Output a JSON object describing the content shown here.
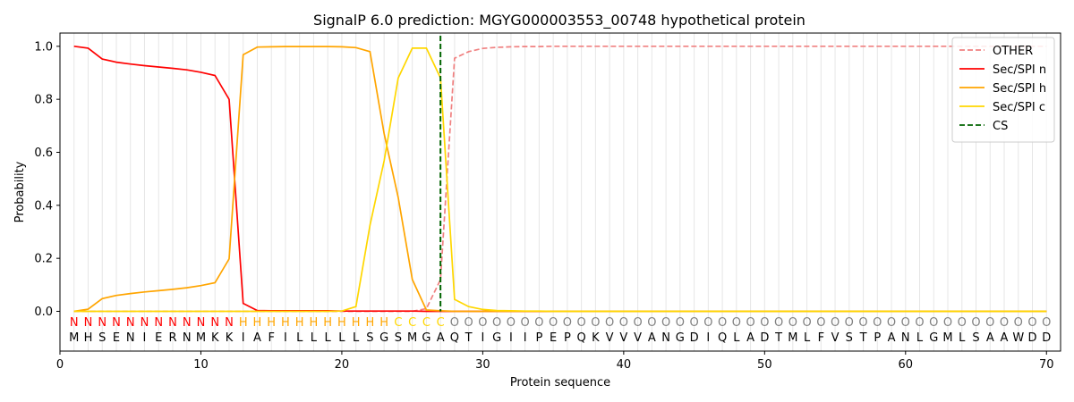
{
  "chart_data": {
    "type": "line",
    "title": "SignalP 6.0 prediction: MGYG000003553_00748 hypothetical protein",
    "xlabel": "Protein sequence",
    "ylabel": "Probability",
    "xlim": [
      0,
      71
    ],
    "ylim": [
      -0.15,
      1.05
    ],
    "x_ticks": [
      0,
      10,
      20,
      30,
      40,
      50,
      60,
      70
    ],
    "y_ticks": [
      0.0,
      0.2,
      0.4,
      0.6,
      0.8,
      1.0
    ],
    "y_tick_labels": [
      "0.0",
      "0.2",
      "0.4",
      "0.6",
      "0.8",
      "1.0"
    ],
    "grid": "vertical lines at each residue",
    "legend_position": "top-right",
    "cleavage_site": 27,
    "sequence": [
      "M",
      "H",
      "S",
      "E",
      "N",
      "I",
      "E",
      "R",
      "N",
      "M",
      "K",
      "K",
      "I",
      "A",
      "F",
      "I",
      "L",
      "L",
      "L",
      "L",
      "L",
      "S",
      "G",
      "S",
      "M",
      "G",
      "A",
      "Q",
      "T",
      "I",
      "G",
      "I",
      "I",
      "P",
      "E",
      "P",
      "Q",
      "K",
      "V",
      "V",
      "V",
      "A",
      "N",
      "G",
      "D",
      "I",
      "Q",
      "L",
      "A",
      "D",
      "T",
      "M",
      "L",
      "F",
      "V",
      "S",
      "T",
      "P",
      "A",
      "N",
      "L",
      "G",
      "M",
      "L",
      "S",
      "A",
      "A",
      "W",
      "D",
      "D"
    ],
    "labels": [
      "N",
      "N",
      "N",
      "N",
      "N",
      "N",
      "N",
      "N",
      "N",
      "N",
      "N",
      "N",
      "H",
      "H",
      "H",
      "H",
      "H",
      "H",
      "H",
      "H",
      "H",
      "H",
      "H",
      "C",
      "C",
      "C",
      "C",
      "O",
      "O",
      "O",
      "O",
      "O",
      "O",
      "O",
      "O",
      "O",
      "O",
      "O",
      "O",
      "O",
      "O",
      "O",
      "O",
      "O",
      "O",
      "O",
      "O",
      "O",
      "O",
      "O",
      "O",
      "O",
      "O",
      "O",
      "O",
      "O",
      "O",
      "O",
      "O",
      "O",
      "O",
      "O",
      "O",
      "O",
      "O",
      "O",
      "O",
      "O",
      "O",
      "O"
    ],
    "label_colors": {
      "N": "#ff0000",
      "H": "#ffa500",
      "C": "#ffd700",
      "O": "#808080"
    },
    "series": [
      {
        "name": "OTHER",
        "color": "#f08080",
        "dash": true,
        "values": [
          0,
          0,
          0,
          0,
          0,
          0,
          0,
          0,
          0,
          0,
          0,
          0,
          0,
          0,
          0,
          0,
          0,
          0,
          0,
          0,
          0,
          0,
          0,
          0,
          0,
          0.01,
          0.12,
          0.955,
          0.98,
          0.992,
          0.996,
          0.998,
          0.999,
          0.999,
          1,
          1,
          1,
          1,
          1,
          1,
          1,
          1,
          1,
          1,
          1,
          1,
          1,
          1,
          1,
          1,
          1,
          1,
          1,
          1,
          1,
          1,
          1,
          1,
          1,
          1,
          1,
          1,
          1,
          1,
          1,
          1,
          1,
          1,
          1,
          1
        ]
      },
      {
        "name": "Sec/SPI n",
        "color": "#ff0000",
        "dash": false,
        "values": [
          1.0,
          0.993,
          0.952,
          0.94,
          0.933,
          0.927,
          0.922,
          0.917,
          0.911,
          0.902,
          0.89,
          0.8,
          0.03,
          0.003,
          0.002,
          0.002,
          0.002,
          0.002,
          0.002,
          0.001,
          0.001,
          0.001,
          0.001,
          0.001,
          0.001,
          0,
          0,
          0,
          0,
          0,
          0,
          0,
          0,
          0,
          0,
          0,
          0,
          0,
          0,
          0,
          0,
          0,
          0,
          0,
          0,
          0,
          0,
          0,
          0,
          0,
          0,
          0,
          0,
          0,
          0,
          0,
          0,
          0,
          0,
          0,
          0,
          0,
          0,
          0,
          0,
          0,
          0,
          0,
          0,
          0
        ]
      },
      {
        "name": "Sec/SPI h",
        "color": "#ffa500",
        "dash": false,
        "values": [
          0.0,
          0.008,
          0.048,
          0.06,
          0.067,
          0.073,
          0.078,
          0.083,
          0.089,
          0.097,
          0.108,
          0.198,
          0.968,
          0.997,
          0.998,
          0.999,
          0.999,
          0.999,
          0.999,
          0.998,
          0.995,
          0.98,
          0.67,
          0.43,
          0.12,
          0.005,
          0.002,
          0,
          0,
          0,
          0,
          0,
          0,
          0,
          0,
          0,
          0,
          0,
          0,
          0,
          0,
          0,
          0,
          0,
          0,
          0,
          0,
          0,
          0,
          0,
          0,
          0,
          0,
          0,
          0,
          0,
          0,
          0,
          0,
          0,
          0,
          0,
          0,
          0,
          0,
          0,
          0,
          0,
          0,
          0
        ]
      },
      {
        "name": "Sec/SPI c",
        "color": "#ffd700",
        "dash": false,
        "values": [
          0,
          0,
          0,
          0,
          0,
          0,
          0,
          0,
          0,
          0,
          0,
          0,
          0,
          0,
          0,
          0,
          0,
          0,
          0,
          0.001,
          0.018,
          0.325,
          0.568,
          0.88,
          0.993,
          0.993,
          0.88,
          0.045,
          0.018,
          0.007,
          0.003,
          0.002,
          0.001,
          0.001,
          0,
          0,
          0,
          0,
          0,
          0,
          0,
          0,
          0,
          0,
          0,
          0,
          0,
          0,
          0,
          0,
          0,
          0,
          0,
          0,
          0,
          0,
          0,
          0,
          0,
          0,
          0,
          0,
          0,
          0,
          0,
          0,
          0,
          0,
          0,
          0
        ]
      },
      {
        "name": "CS",
        "color": "#006400",
        "dash": true,
        "type": "vline",
        "x": 27
      }
    ]
  }
}
